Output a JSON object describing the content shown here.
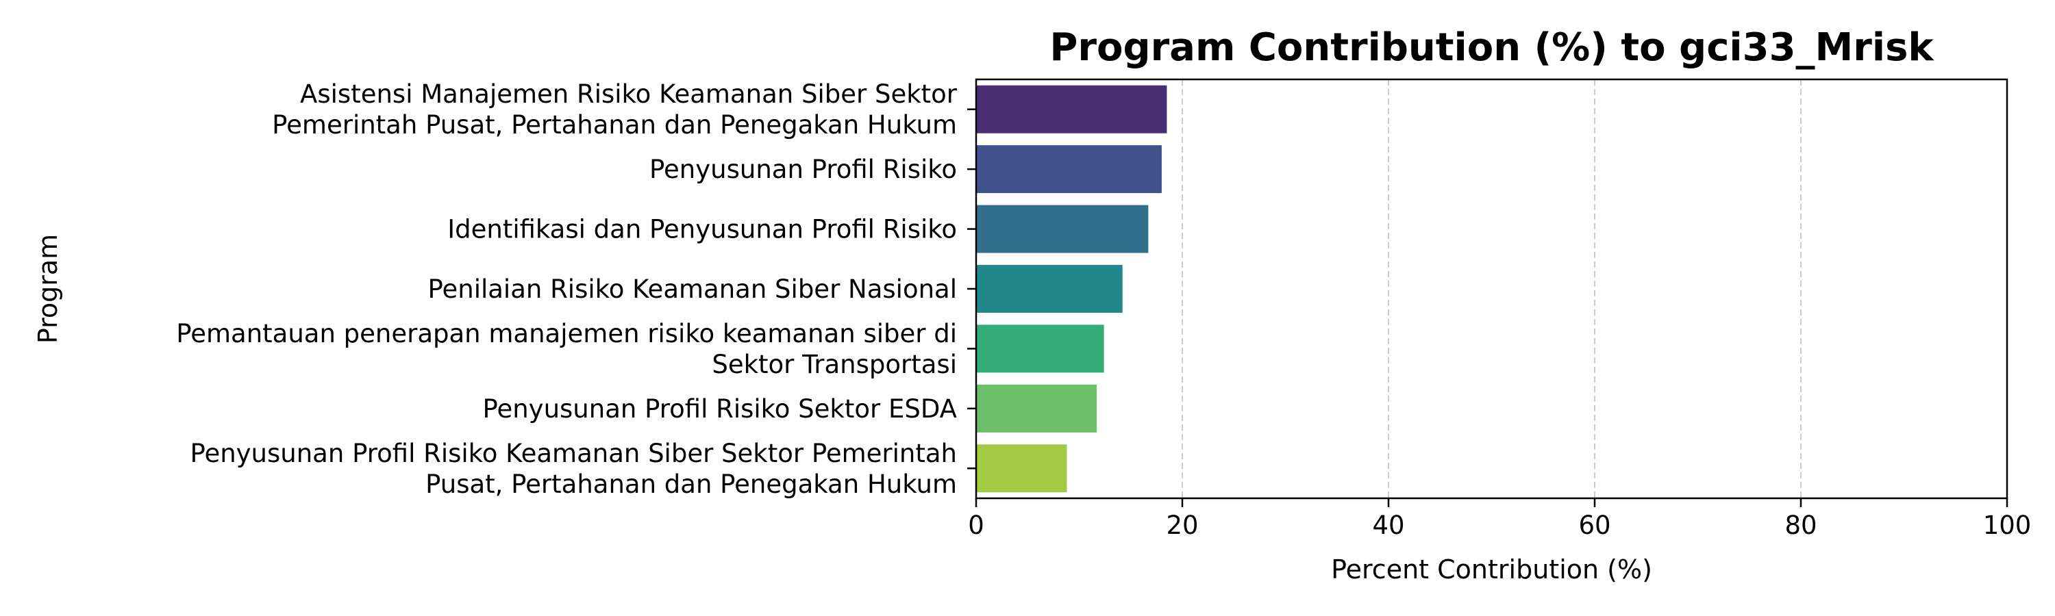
{
  "chart_data": {
    "type": "bar",
    "orientation": "horizontal",
    "title": "Program Contribution (%) to gci33_Mrisk",
    "xlabel": "Percent Contribution (%)",
    "ylabel": "Program",
    "xlim": [
      0,
      100
    ],
    "xticks": [
      "0",
      "20",
      "40",
      "60",
      "80",
      "100"
    ],
    "grid": "x-dashed",
    "categories": [
      [
        "Asistensi Manajemen Risiko Keamanan Siber Sektor",
        "Pemerintah Pusat, Pertahanan dan Penegakan Hukum"
      ],
      [
        "Penyusunan Profil Risiko"
      ],
      [
        "Identifikasi dan Penyusunan Profil Risiko"
      ],
      [
        "Penilaian Risiko Keamanan Siber Nasional"
      ],
      [
        "Pemantauan penerapan manajemen risiko keamanan siber di",
        "Sektor Transportasi"
      ],
      [
        "Penyusunan Profil Risiko Sektor ESDA"
      ],
      [
        "Penyusunan Profil Risiko Keamanan Siber Sektor Pemerintah",
        "Pusat, Pertahanan dan Penegakan Hukum"
      ]
    ],
    "values": [
      18.5,
      18.0,
      16.7,
      14.2,
      12.4,
      11.7,
      8.8
    ],
    "colors": [
      "#482e73",
      "#3f528b",
      "#316f8c",
      "#22878a",
      "#35ad79",
      "#6bbf69",
      "#a4c942"
    ]
  }
}
